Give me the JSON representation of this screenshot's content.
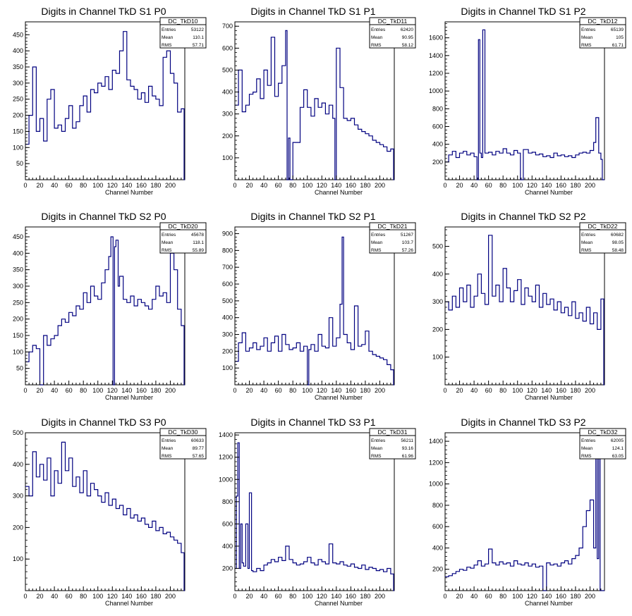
{
  "colors": {
    "line": "#000080",
    "axis": "#000000",
    "background": "#ffffff"
  },
  "chart_data": [
    {
      "type": "line",
      "title": "Digits in Channel TkD S1 P0",
      "xlabel": "Channel Number",
      "ylabel": "",
      "xlim": [
        0,
        220
      ],
      "ylim": [
        0,
        490
      ],
      "xticks": [
        "0",
        "20",
        "40",
        "60",
        "80",
        "100",
        "120",
        "140",
        "160",
        "180",
        "200"
      ],
      "yticks": [
        "50",
        "100",
        "150",
        "200",
        "250",
        "300",
        "350",
        "400",
        "450"
      ],
      "stats": {
        "name": "DC_TkD10",
        "rows": [
          [
            "Entries",
            "53122"
          ],
          [
            "Mean",
            "110.1"
          ],
          [
            "RMS",
            "57.71"
          ]
        ]
      },
      "x": [
        0,
        5,
        10,
        15,
        20,
        25,
        30,
        35,
        40,
        45,
        50,
        55,
        60,
        65,
        70,
        75,
        80,
        85,
        90,
        95,
        100,
        105,
        110,
        115,
        120,
        125,
        130,
        135,
        140,
        145,
        150,
        155,
        160,
        165,
        170,
        175,
        180,
        185,
        190,
        195,
        200,
        205,
        210,
        215,
        219
      ],
      "values": [
        110,
        200,
        350,
        150,
        190,
        120,
        250,
        280,
        160,
        170,
        150,
        190,
        230,
        160,
        180,
        230,
        260,
        210,
        280,
        270,
        300,
        290,
        320,
        280,
        340,
        330,
        400,
        460,
        310,
        290,
        280,
        250,
        270,
        240,
        290,
        260,
        250,
        230,
        380,
        400,
        330,
        300,
        210,
        220,
        0
      ]
    },
    {
      "type": "line",
      "title": "Digits in Channel TkD S1 P1",
      "xlabel": "Channel Number",
      "ylabel": "",
      "xlim": [
        0,
        220
      ],
      "ylim": [
        0,
        720
      ],
      "xticks": [
        "0",
        "20",
        "40",
        "60",
        "80",
        "100",
        "120",
        "140",
        "160",
        "180",
        "200"
      ],
      "yticks": [
        "100",
        "200",
        "300",
        "400",
        "500",
        "600",
        "700"
      ],
      "stats": {
        "name": "DC_TkD11",
        "rows": [
          [
            "Entries",
            "62420"
          ],
          [
            "Mean",
            "90.95"
          ],
          [
            "RMS",
            "58.12"
          ]
        ]
      },
      "x": [
        0,
        5,
        10,
        15,
        20,
        25,
        30,
        35,
        40,
        45,
        50,
        55,
        60,
        65,
        70,
        72,
        74,
        76,
        80,
        85,
        90,
        95,
        100,
        105,
        110,
        115,
        120,
        125,
        130,
        135,
        138,
        140,
        145,
        150,
        155,
        160,
        165,
        170,
        175,
        180,
        185,
        190,
        195,
        200,
        205,
        210,
        215,
        219
      ],
      "values": [
        340,
        500,
        310,
        340,
        390,
        400,
        460,
        370,
        500,
        430,
        650,
        380,
        440,
        520,
        680,
        0,
        190,
        0,
        170,
        170,
        330,
        410,
        330,
        290,
        370,
        330,
        350,
        300,
        340,
        280,
        0,
        600,
        420,
        280,
        270,
        280,
        250,
        230,
        220,
        210,
        200,
        180,
        170,
        160,
        150,
        130,
        140,
        0
      ]
    },
    {
      "type": "line",
      "title": "Digits in Channel TkD S1 P2",
      "xlabel": "Channel Number",
      "ylabel": "",
      "xlim": [
        0,
        220
      ],
      "ylim": [
        0,
        1780
      ],
      "xticks": [
        "0",
        "20",
        "40",
        "60",
        "80",
        "100",
        "120",
        "140",
        "160",
        "180",
        "200"
      ],
      "yticks": [
        "200",
        "400",
        "600",
        "800",
        "1000",
        "1200",
        "1400",
        "1600"
      ],
      "stats": {
        "name": "DC_TkD12",
        "rows": [
          [
            "Entries",
            "65139"
          ],
          [
            "Mean",
            "105"
          ],
          [
            "RMS",
            "61.71"
          ]
        ]
      },
      "x": [
        0,
        5,
        10,
        15,
        20,
        25,
        30,
        35,
        40,
        44,
        46,
        48,
        50,
        52,
        55,
        60,
        65,
        70,
        75,
        80,
        85,
        90,
        95,
        100,
        104,
        108,
        115,
        120,
        125,
        130,
        135,
        140,
        145,
        150,
        155,
        160,
        165,
        170,
        175,
        180,
        185,
        190,
        195,
        200,
        205,
        208,
        212,
        215,
        217
      ],
      "values": [
        200,
        280,
        320,
        250,
        300,
        320,
        280,
        300,
        260,
        0,
        1580,
        300,
        250,
        1690,
        300,
        310,
        280,
        320,
        300,
        350,
        300,
        280,
        330,
        300,
        0,
        340,
        300,
        310,
        280,
        290,
        260,
        270,
        250,
        300,
        270,
        280,
        260,
        270,
        250,
        280,
        300,
        310,
        300,
        330,
        420,
        700,
        300,
        230,
        0
      ]
    },
    {
      "type": "line",
      "title": "Digits in Channel TkD S2 P0",
      "xlabel": "Channel Number",
      "ylabel": "",
      "xlim": [
        0,
        220
      ],
      "ylim": [
        0,
        480
      ],
      "xticks": [
        "0",
        "20",
        "40",
        "60",
        "80",
        "100",
        "120",
        "140",
        "160",
        "180",
        "200"
      ],
      "yticks": [
        "50",
        "100",
        "150",
        "200",
        "250",
        "300",
        "350",
        "400",
        "450"
      ],
      "stats": {
        "name": "DC_TkD20",
        "rows": [
          [
            "Entries",
            "45678"
          ],
          [
            "Mean",
            "118.1"
          ],
          [
            "RMS",
            "55.89"
          ]
        ]
      },
      "x": [
        0,
        5,
        10,
        15,
        20,
        25,
        30,
        35,
        40,
        45,
        50,
        55,
        60,
        65,
        70,
        75,
        80,
        85,
        90,
        95,
        100,
        105,
        110,
        115,
        118,
        121,
        123,
        125,
        128,
        130,
        135,
        140,
        145,
        150,
        155,
        160,
        165,
        170,
        175,
        180,
        185,
        190,
        195,
        200,
        205,
        210,
        215,
        219
      ],
      "values": [
        70,
        100,
        120,
        110,
        0,
        150,
        120,
        140,
        150,
        180,
        200,
        190,
        220,
        210,
        240,
        230,
        280,
        250,
        300,
        270,
        260,
        310,
        350,
        390,
        450,
        0,
        420,
        440,
        300,
        330,
        260,
        250,
        270,
        240,
        260,
        250,
        240,
        230,
        260,
        300,
        270,
        280,
        250,
        400,
        350,
        230,
        180,
        0
      ],
      "notes": "drop to zero near channel 20 and 122"
    },
    {
      "type": "line",
      "title": "Digits in Channel TkD S2 P1",
      "xlabel": "Channel Number",
      "ylabel": "",
      "xlim": [
        0,
        220
      ],
      "ylim": [
        0,
        940
      ],
      "xticks": [
        "0",
        "20",
        "40",
        "60",
        "80",
        "100",
        "120",
        "140",
        "160",
        "180",
        "200"
      ],
      "yticks": [
        "100",
        "200",
        "300",
        "400",
        "500",
        "600",
        "700",
        "800",
        "900"
      ],
      "stats": {
        "name": "DC_TkD21",
        "rows": [
          [
            "Entries",
            "51267"
          ],
          [
            "Mean",
            "103.7"
          ],
          [
            "RMS",
            "57.26"
          ]
        ]
      },
      "x": [
        0,
        5,
        10,
        15,
        20,
        25,
        30,
        35,
        40,
        45,
        50,
        55,
        60,
        65,
        70,
        75,
        80,
        85,
        90,
        95,
        100,
        102,
        105,
        110,
        115,
        120,
        125,
        130,
        135,
        140,
        145,
        148,
        150,
        155,
        160,
        165,
        170,
        175,
        180,
        185,
        190,
        195,
        200,
        205,
        210,
        215,
        219
      ],
      "values": [
        140,
        250,
        310,
        200,
        220,
        250,
        210,
        230,
        280,
        200,
        250,
        290,
        200,
        300,
        240,
        210,
        220,
        250,
        200,
        230,
        0,
        210,
        240,
        200,
        300,
        230,
        220,
        400,
        230,
        280,
        480,
        880,
        300,
        250,
        210,
        470,
        230,
        240,
        320,
        200,
        180,
        170,
        160,
        150,
        120,
        90,
        0
      ]
    },
    {
      "type": "line",
      "title": "Digits in Channel TkD S2 P2",
      "xlabel": "Channel Number",
      "ylabel": "",
      "xlim": [
        0,
        220
      ],
      "ylim": [
        0,
        570
      ],
      "xticks": [
        "0",
        "20",
        "40",
        "60",
        "80",
        "100",
        "120",
        "140",
        "160",
        "180",
        "200"
      ],
      "yticks": [
        "100",
        "200",
        "300",
        "400",
        "500"
      ],
      "stats": {
        "name": "DC_TkD22",
        "rows": [
          [
            "Entries",
            "60682"
          ],
          [
            "Mean",
            "98.05"
          ],
          [
            "RMS",
            "58.48"
          ]
        ]
      },
      "x": [
        0,
        5,
        10,
        15,
        20,
        25,
        30,
        35,
        40,
        45,
        50,
        55,
        60,
        65,
        70,
        75,
        80,
        85,
        90,
        95,
        100,
        105,
        110,
        115,
        120,
        125,
        130,
        135,
        140,
        145,
        150,
        155,
        160,
        165,
        170,
        175,
        180,
        185,
        190,
        195,
        200,
        205,
        210,
        215,
        219
      ],
      "values": [
        300,
        270,
        320,
        280,
        350,
        300,
        360,
        280,
        320,
        400,
        330,
        290,
        540,
        320,
        360,
        300,
        420,
        350,
        300,
        340,
        380,
        290,
        350,
        320,
        300,
        360,
        280,
        330,
        290,
        310,
        270,
        300,
        260,
        280,
        250,
        300,
        240,
        260,
        230,
        280,
        220,
        260,
        200,
        310,
        0
      ]
    },
    {
      "type": "line",
      "title": "Digits in Channel TkD S3 P0",
      "xlabel": "Channel Number",
      "ylabel": "",
      "xlim": [
        0,
        220
      ],
      "ylim": [
        0,
        500
      ],
      "xticks": [
        "0",
        "20",
        "40",
        "60",
        "80",
        "100",
        "120",
        "140",
        "160",
        "180",
        "200"
      ],
      "yticks": [
        "100",
        "200",
        "300",
        "400",
        "500"
      ],
      "stats": {
        "name": "DC_TkD30",
        "rows": [
          [
            "Entries",
            "60633"
          ],
          [
            "Mean",
            "89.77"
          ],
          [
            "RMS",
            "57.65"
          ]
        ]
      },
      "x": [
        0,
        5,
        10,
        15,
        20,
        25,
        30,
        35,
        40,
        45,
        50,
        55,
        60,
        65,
        70,
        75,
        80,
        85,
        90,
        95,
        100,
        105,
        110,
        115,
        120,
        125,
        130,
        135,
        140,
        145,
        150,
        155,
        160,
        165,
        170,
        175,
        180,
        185,
        190,
        195,
        200,
        205,
        210,
        215,
        219
      ],
      "values": [
        330,
        300,
        440,
        360,
        400,
        350,
        420,
        300,
        380,
        340,
        470,
        380,
        420,
        330,
        360,
        310,
        380,
        300,
        340,
        320,
        300,
        280,
        310,
        270,
        290,
        260,
        270,
        240,
        260,
        230,
        240,
        220,
        230,
        210,
        200,
        220,
        190,
        200,
        180,
        185,
        170,
        160,
        150,
        120,
        0
      ]
    },
    {
      "type": "line",
      "title": "Digits in Channel TkD S3 P1",
      "xlabel": "Channel Number",
      "ylabel": "",
      "xlim": [
        0,
        220
      ],
      "ylim": [
        0,
        1420
      ],
      "xticks": [
        "0",
        "20",
        "40",
        "60",
        "80",
        "100",
        "120",
        "140",
        "160",
        "180",
        "200"
      ],
      "yticks": [
        "200",
        "400",
        "600",
        "800",
        "1000",
        "1200",
        "1400"
      ],
      "stats": {
        "name": "DC_TkD31",
        "rows": [
          [
            "Entries",
            "56211"
          ],
          [
            "Mean",
            "93.16"
          ],
          [
            "RMS",
            "61.96"
          ]
        ]
      },
      "x": [
        0,
        2,
        4,
        6,
        8,
        10,
        12,
        15,
        18,
        20,
        23,
        25,
        30,
        35,
        40,
        45,
        50,
        55,
        60,
        65,
        70,
        75,
        80,
        85,
        90,
        95,
        100,
        105,
        110,
        115,
        120,
        125,
        130,
        135,
        140,
        145,
        150,
        155,
        160,
        165,
        170,
        175,
        180,
        185,
        190,
        195,
        200,
        205,
        210,
        215,
        219
      ],
      "values": [
        200,
        850,
        1330,
        200,
        600,
        250,
        220,
        600,
        200,
        880,
        180,
        170,
        200,
        180,
        230,
        250,
        280,
        260,
        300,
        270,
        400,
        280,
        250,
        230,
        240,
        260,
        300,
        250,
        230,
        280,
        260,
        240,
        420,
        250,
        240,
        260,
        230,
        220,
        240,
        210,
        200,
        230,
        190,
        210,
        200,
        180,
        190,
        170,
        200,
        150,
        0
      ]
    },
    {
      "type": "line",
      "title": "Digits in Channel TkD S3 P2",
      "xlabel": "Channel Number",
      "ylabel": "",
      "xlim": [
        0,
        220
      ],
      "ylim": [
        0,
        1480
      ],
      "xticks": [
        "0",
        "20",
        "40",
        "60",
        "80",
        "100",
        "120",
        "140",
        "160",
        "180",
        "200"
      ],
      "yticks": [
        "200",
        "400",
        "600",
        "800",
        "1000",
        "1200",
        "1400"
      ],
      "stats": {
        "name": "DC_TkD32",
        "rows": [
          [
            "Entries",
            "62005"
          ],
          [
            "Mean",
            "124.1"
          ],
          [
            "RMS",
            "63.05"
          ]
        ]
      },
      "x": [
        0,
        5,
        10,
        15,
        20,
        25,
        30,
        35,
        40,
        45,
        50,
        55,
        60,
        65,
        70,
        75,
        80,
        85,
        90,
        95,
        100,
        105,
        110,
        115,
        120,
        125,
        130,
        135,
        140,
        145,
        150,
        155,
        160,
        165,
        170,
        175,
        180,
        185,
        190,
        195,
        200,
        205,
        208,
        210,
        212,
        214,
        216
      ],
      "values": [
        130,
        140,
        160,
        180,
        200,
        190,
        220,
        210,
        240,
        280,
        230,
        250,
        390,
        260,
        240,
        270,
        250,
        260,
        230,
        280,
        250,
        240,
        260,
        230,
        250,
        220,
        230,
        0,
        260,
        240,
        250,
        230,
        260,
        280,
        250,
        300,
        330,
        400,
        600,
        750,
        850,
        400,
        1250,
        300,
        1400,
        0,
        0
      ]
    }
  ]
}
